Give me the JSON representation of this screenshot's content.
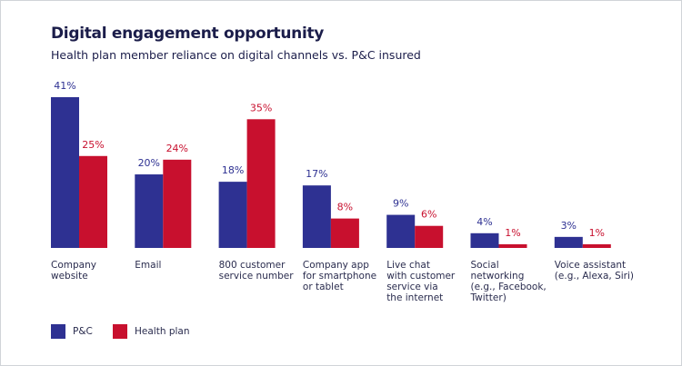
{
  "chart_data": {
    "type": "bar",
    "title": "Digital engagement opportunity",
    "subtitle": "Health plan member reliance on digital channels vs. P&C insured",
    "categories": [
      "Company\nwebsite",
      "Email",
      "800 customer\nservice number",
      "Company app\nfor smartphone\nor tablet",
      "Live chat\nwith customer\nservice via\nthe internet",
      "Social\nnetworking\n(e.g., Facebook,\nTwitter)",
      "Voice assistant\n(e.g., Alexa, Siri)"
    ],
    "series": [
      {
        "name": "P&C",
        "color": "#2e3192",
        "values": [
          41,
          20,
          18,
          17,
          9,
          4,
          3
        ],
        "labels": [
          "41%",
          "20%",
          "18%",
          "17%",
          "9%",
          "4%",
          "3%"
        ]
      },
      {
        "name": "Health plan",
        "color": "#c8102e",
        "values": [
          25,
          24,
          35,
          8,
          6,
          1,
          1
        ],
        "labels": [
          "25%",
          "24%",
          "35%",
          "8%",
          "6%",
          "1%",
          "1%"
        ]
      }
    ],
    "legend": "bottom-left",
    "grid": false,
    "ylim": [
      0,
      41
    ]
  }
}
